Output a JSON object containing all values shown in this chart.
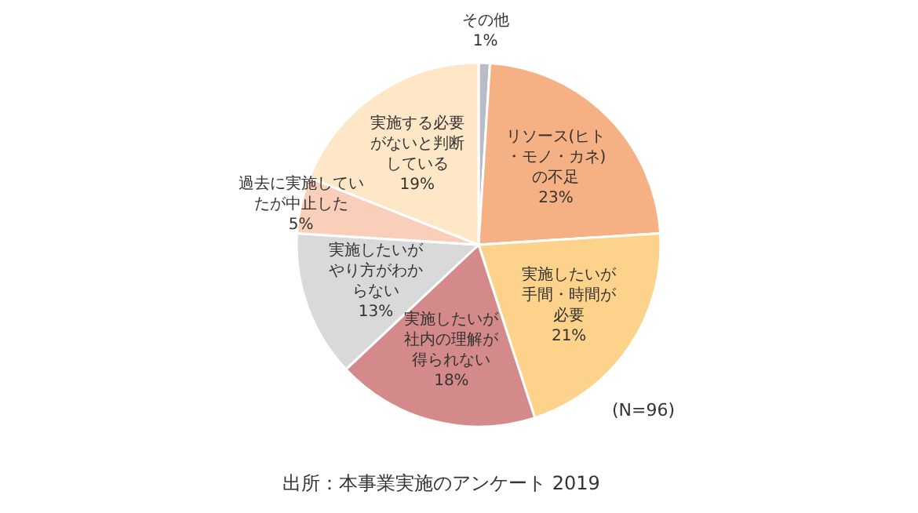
{
  "chart_data": {
    "type": "pie",
    "categories": [
      "その他",
      "リソース(ヒト・モノ・カネ)の不足",
      "実施したいが手間・時間が必要",
      "実施したいが社内の理解が得られない",
      "実施したいがやり方がわからない",
      "過去に実施していたが中止した",
      "実施する必要がないと判断している"
    ],
    "values": [
      1,
      23,
      21,
      18,
      13,
      5,
      19
    ],
    "value_labels": [
      "1%",
      "23%",
      "21%",
      "18%",
      "13%",
      "5%",
      "19%"
    ],
    "colors": [
      "#b8bcc6",
      "#f5b083",
      "#fdd38c",
      "#d48a8a",
      "#d9d9d9",
      "#f9cfba",
      "#fde7c6"
    ],
    "annotations": [
      "(N=96)",
      "出所：本事業実施のアンケート 2019"
    ],
    "legend": false
  }
}
